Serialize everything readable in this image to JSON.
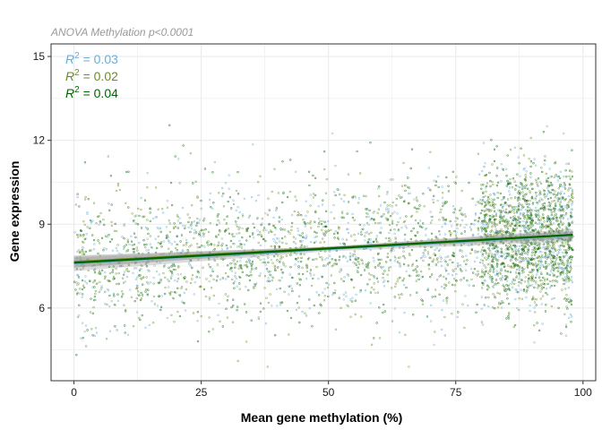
{
  "chart_data": {
    "type": "scatter",
    "subtitle": "ANOVA Methylation p<0.0001",
    "xlabel": "Mean gene methylation (%)",
    "ylabel": "Gene expression",
    "xlim": [
      -4.5,
      102.5
    ],
    "ylim": [
      3.4,
      15.45
    ],
    "x_ticks": [
      0,
      25,
      50,
      75,
      100
    ],
    "y_ticks": [
      6,
      9,
      12,
      15
    ],
    "grid": true,
    "annotations": [
      {
        "prefix": "R",
        "superscript": "2",
        "text": " = 0.03",
        "color": "#6baed6"
      },
      {
        "prefix": "R",
        "superscript": "2",
        "text": " = 0.02",
        "color": "#6b8e23"
      },
      {
        "prefix": "R",
        "superscript": "2",
        "text": " = 0.04",
        "color": "#006400"
      }
    ],
    "series": [
      {
        "color": "#6baed6",
        "x_range": [
          0,
          98
        ],
        "trend": [
          [
            0,
            7.6
          ],
          [
            98,
            8.6
          ]
        ],
        "band": [
          [
            0,
            0.28
          ],
          [
            50,
            0.08
          ],
          [
            98,
            0.22
          ]
        ]
      },
      {
        "color": "#6b8e23",
        "x_range": [
          0,
          98
        ],
        "trend": [
          [
            0,
            7.65
          ],
          [
            98,
            8.62
          ]
        ],
        "band": [
          [
            0,
            0.2
          ],
          [
            50,
            0.06
          ],
          [
            98,
            0.14
          ]
        ]
      },
      {
        "color": "#006400",
        "x_range": [
          0,
          98
        ],
        "trend": [
          [
            0,
            7.62
          ],
          [
            98,
            8.62
          ]
        ],
        "band": [
          [
            0,
            0.18
          ],
          [
            50,
            0.05
          ],
          [
            98,
            0.12
          ]
        ]
      }
    ],
    "colors": {
      "panel_border": "#333333",
      "grid": "#ebebeb",
      "band": "#999999"
    }
  }
}
